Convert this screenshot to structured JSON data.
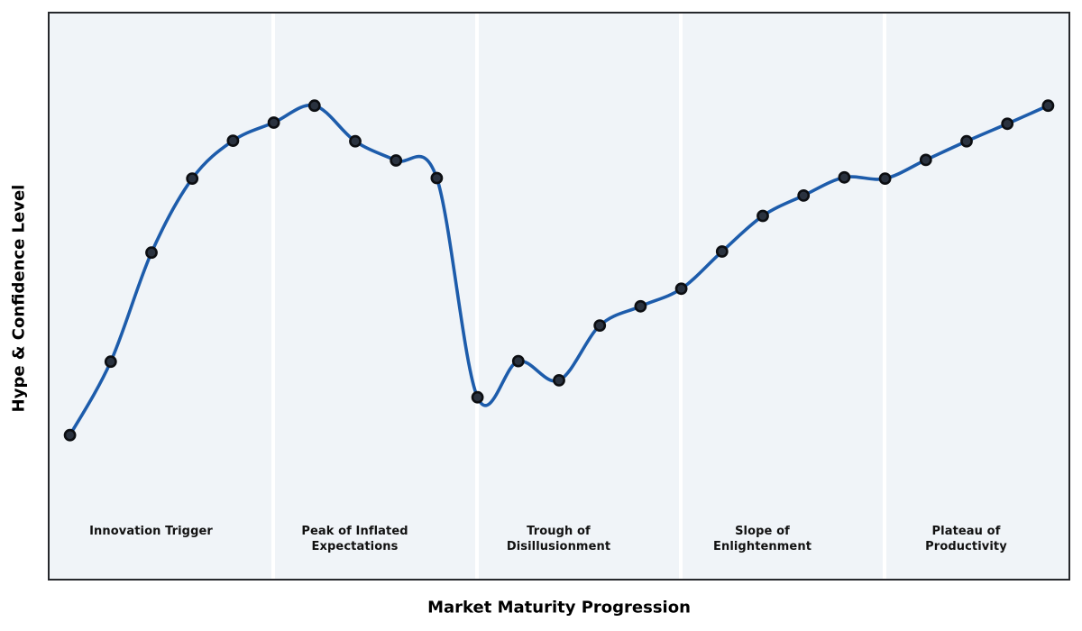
{
  "chart_data": {
    "type": "line",
    "title": "",
    "xlabel": "Market Maturity Progression",
    "ylabel": "Hype & Confidence Level",
    "x": [
      0,
      1,
      2,
      3,
      4,
      5,
      6,
      7,
      8,
      9,
      10,
      11,
      12,
      13,
      14,
      15,
      16,
      17,
      18,
      19,
      20,
      21,
      22,
      23,
      24
    ],
    "series": [
      {
        "name": "hype-confidence",
        "values": [
          25.4,
          38.4,
          57.7,
          70.8,
          77.5,
          80.7,
          83.7,
          77.4,
          74.0,
          70.9,
          32.1,
          38.5,
          35.1,
          44.8,
          48.2,
          51.3,
          57.9,
          64.2,
          67.8,
          71.0,
          70.8,
          74.1,
          77.4,
          80.5,
          83.7
        ]
      }
    ],
    "xlim": [
      -0.5,
      24.5
    ],
    "ylim": [
      0,
      100
    ],
    "grid": false,
    "legend": false,
    "axis_ticks_visible": false,
    "curve_style": "smooth-spline-with-markers",
    "phases": [
      {
        "id": "innovation-trigger",
        "label": "Innovation Trigger",
        "center_x": 2
      },
      {
        "id": "peak-of-inflated-expectations",
        "label": "Peak of Inflated\nExpectations",
        "center_x": 7
      },
      {
        "id": "trough-of-disillusionment",
        "label": "Trough of\nDisillusionment",
        "center_x": 12
      },
      {
        "id": "slope-of-enlightenment",
        "label": "Slope of\nEnlightenment",
        "center_x": 17
      },
      {
        "id": "plateau-of-productivity",
        "label": "Plateau of\nProductivity",
        "center_x": 22
      }
    ],
    "separator_x": [
      5,
      10,
      15,
      20
    ],
    "colors": {
      "line": "#1d5cab",
      "marker_fill": "#2a323f",
      "marker_edge": "#0c0e12",
      "plot_background": "#f0f4f8",
      "separator": "#ffffff",
      "border": "#26282c",
      "text": "#111111",
      "figure_background": "#ffffff"
    }
  }
}
